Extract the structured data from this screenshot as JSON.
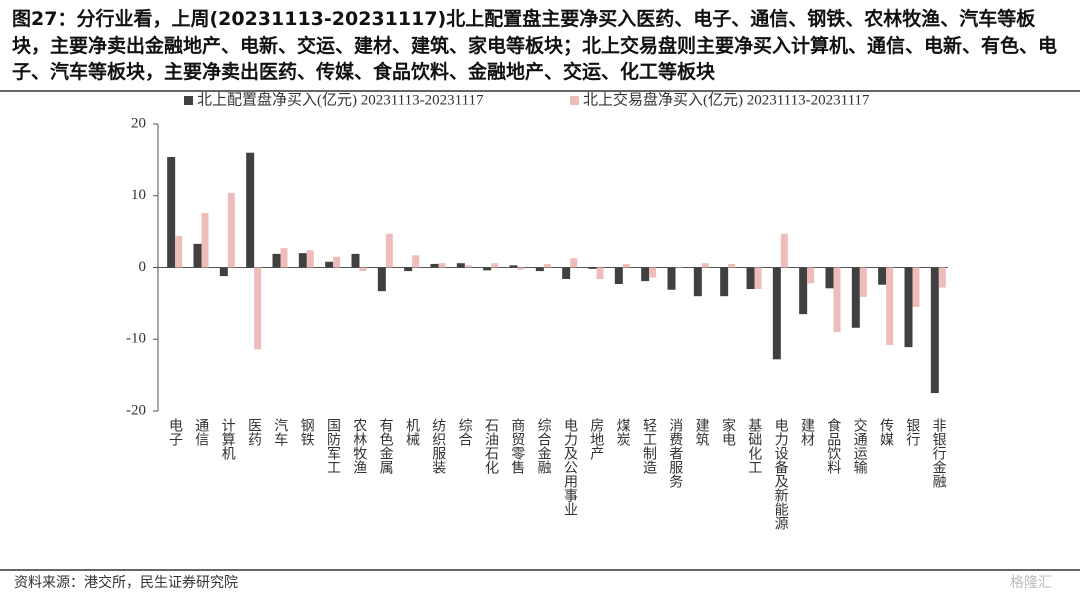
{
  "chart_data": {
    "type": "bar",
    "title": "图27：分行业看，上周(20231113-20231117)北上配置盘主要净买入医药、电子、通信、钢铁、农林牧渔、汽车等板块，主要净卖出金融地产、电新、交运、建材、建筑、家电等板块；北上交易盘则主要净买入计算机、通信、电新、有色、电子、汽车等板块，主要净卖出医药、传媒、食品饮料、金融地产、交运、化工等板块",
    "categories": [
      "电子",
      "通信",
      "计算机",
      "医药",
      "汽车",
      "钢铁",
      "国防军工",
      "农林牧渔",
      "有色金属",
      "机械",
      "纺织服装",
      "综合",
      "石油石化",
      "商贸零售",
      "综合金融",
      "电力及公用事业",
      "房地产",
      "煤炭",
      "轻工制造",
      "消费者服务",
      "建筑",
      "家电",
      "基础化工",
      "电力设备及新能源",
      "建材",
      "食品饮料",
      "交通运输",
      "传媒",
      "银行",
      "非银行金融"
    ],
    "series": [
      {
        "name": "北上配置盘净买入(亿元) 20231113-20231117",
        "color": "#404040",
        "values": [
          15.4,
          3.3,
          -1.2,
          16.0,
          1.9,
          2.0,
          0.8,
          1.9,
          -3.3,
          -0.5,
          0.5,
          0.6,
          -0.4,
          0.3,
          -0.5,
          -1.6,
          -0.2,
          -2.3,
          -1.9,
          -3.1,
          -4.0,
          -4.0,
          -3.0,
          -12.8,
          -6.5,
          -2.9,
          -8.4,
          -2.4,
          -11.1,
          -17.5
        ]
      },
      {
        "name": "北上交易盘净买入(亿元) 20231113-20231117",
        "color": "#efbcbc",
        "values": [
          4.4,
          7.6,
          10.4,
          -11.4,
          2.7,
          2.4,
          1.5,
          -0.5,
          4.7,
          1.7,
          0.6,
          0.3,
          0.6,
          -0.3,
          0.5,
          1.3,
          -1.6,
          0.5,
          -1.4,
          -0.1,
          0.6,
          0.5,
          -3.0,
          4.7,
          -2.2,
          -9.0,
          -4.1,
          -10.8,
          -5.5,
          -2.8
        ]
      }
    ],
    "ylim": [
      -20,
      20
    ],
    "yticks": [
      -20,
      -10,
      0,
      10,
      20
    ],
    "source": "资料来源：港交所，民生证券研究院",
    "watermark": "格隆汇"
  }
}
